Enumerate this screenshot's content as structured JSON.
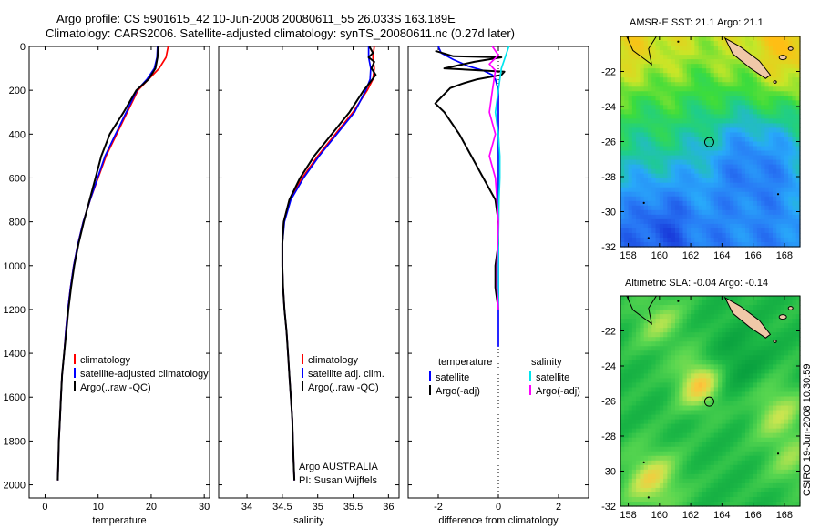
{
  "header": {
    "line1": "Argo profile: CS 5901615_42 10-Jun-2008 20080611_55 26.033S 163.189E",
    "line2": "Climatology: CARS2006. Satellite-adjusted climatology: synTS_20080611.nc (0.27d later)"
  },
  "side_stamp": "CSIRO 19-Jun-2008 10:30:59",
  "colors": {
    "red": "#ff0000",
    "blue": "#0000ff",
    "black": "#000000",
    "cyan": "#00e5ee",
    "magenta": "#ff00ff",
    "sand": "#f0c8a8"
  },
  "chart_data": [
    {
      "type": "line",
      "xlabel": "temperature",
      "xlim": [
        -3,
        31
      ],
      "xticks": [
        0,
        10,
        20,
        30
      ],
      "ylim": [
        2060,
        0
      ],
      "yticks": [
        0,
        200,
        400,
        600,
        800,
        1000,
        1200,
        1400,
        1600,
        1800,
        2000
      ],
      "legend": {
        "entries": [
          "climatology",
          "satellite-adjusted climatology",
          "Argo(..raw -QC)"
        ],
        "colors": [
          "red",
          "blue",
          "black"
        ]
      },
      "series": [
        {
          "name": "climatology",
          "color": "red",
          "points": [
            [
              23.2,
              0
            ],
            [
              22.8,
              50
            ],
            [
              21.5,
              100
            ],
            [
              19.5,
              150
            ],
            [
              17.5,
              200
            ],
            [
              15.5,
              300
            ],
            [
              13.5,
              400
            ],
            [
              11.5,
              500
            ],
            [
              10,
              600
            ],
            [
              8.5,
              700
            ],
            [
              7.2,
              800
            ],
            [
              6.2,
              900
            ],
            [
              5.4,
              1000
            ],
            [
              4.8,
              1100
            ],
            [
              4.3,
              1200
            ],
            [
              3.9,
              1300
            ],
            [
              3.6,
              1400
            ],
            [
              3.2,
              1500
            ],
            [
              3,
              1600
            ],
            [
              2.8,
              1700
            ],
            [
              2.6,
              1800
            ],
            [
              2.5,
              1900
            ],
            [
              2.4,
              1980
            ]
          ]
        },
        {
          "name": "satellite-adjusted climatology",
          "color": "blue",
          "points": [
            [
              21.2,
              0
            ],
            [
              21.1,
              50
            ],
            [
              20.6,
              100
            ],
            [
              19.2,
              150
            ],
            [
              17.3,
              200
            ],
            [
              15.3,
              300
            ],
            [
              13.3,
              400
            ],
            [
              11.3,
              500
            ],
            [
              9.9,
              600
            ],
            [
              8.5,
              700
            ],
            [
              7.2,
              800
            ],
            [
              6.2,
              900
            ],
            [
              5.4,
              1000
            ],
            [
              4.8,
              1100
            ],
            [
              4.3,
              1200
            ],
            [
              3.9,
              1300
            ],
            [
              3.6,
              1400
            ],
            [
              3.2,
              1500
            ],
            [
              3,
              1600
            ],
            [
              2.8,
              1700
            ],
            [
              2.6,
              1800
            ],
            [
              2.5,
              1900
            ],
            [
              2.4,
              1980
            ]
          ]
        },
        {
          "name": "Argo(..raw -QC)",
          "color": "black",
          "points": [
            [
              21.3,
              0
            ],
            [
              21.2,
              50
            ],
            [
              20.8,
              100
            ],
            [
              19.5,
              150
            ],
            [
              17.2,
              200
            ],
            [
              14.8,
              300
            ],
            [
              12.2,
              400
            ],
            [
              10.6,
              500
            ],
            [
              9.5,
              600
            ],
            [
              8.4,
              700
            ],
            [
              7.3,
              800
            ],
            [
              6.3,
              900
            ],
            [
              5.5,
              1000
            ],
            [
              4.9,
              1100
            ],
            [
              4.4,
              1200
            ],
            [
              4,
              1300
            ],
            [
              3.6,
              1400
            ],
            [
              3.2,
              1500
            ],
            [
              3,
              1600
            ],
            [
              2.8,
              1700
            ],
            [
              2.6,
              1800
            ],
            [
              2.5,
              1900
            ],
            [
              2.4,
              1980
            ]
          ]
        }
      ]
    },
    {
      "type": "line",
      "xlabel": "salinity",
      "xlim": [
        33.6,
        36.15
      ],
      "xticks": [
        34,
        34.5,
        35,
        35.5,
        36
      ],
      "ylim": [
        2060,
        0
      ],
      "legend": {
        "entries": [
          "climatology",
          "satellite adj. clim.",
          "Argo(..raw -QC)"
        ],
        "colors": [
          "red",
          "blue",
          "black"
        ]
      },
      "annotation": [
        "Argo AUSTRALIA",
        "PI: Susan Wijffels"
      ],
      "series": [
        {
          "name": "climatology",
          "color": "red",
          "points": [
            [
              35.8,
              0
            ],
            [
              35.78,
              50
            ],
            [
              35.8,
              100
            ],
            [
              35.78,
              150
            ],
            [
              35.7,
              200
            ],
            [
              35.5,
              300
            ],
            [
              35.25,
              400
            ],
            [
              35,
              500
            ],
            [
              34.78,
              600
            ],
            [
              34.6,
              700
            ],
            [
              34.52,
              800
            ],
            [
              34.5,
              900
            ],
            [
              34.5,
              1000
            ],
            [
              34.51,
              1100
            ],
            [
              34.53,
              1200
            ],
            [
              34.56,
              1300
            ],
            [
              34.58,
              1400
            ],
            [
              34.6,
              1500
            ],
            [
              34.62,
              1600
            ],
            [
              34.64,
              1700
            ],
            [
              34.65,
              1800
            ],
            [
              34.66,
              1900
            ],
            [
              34.67,
              1980
            ]
          ]
        },
        {
          "name": "satellite adj. clim.",
          "color": "blue",
          "points": [
            [
              35.72,
              0
            ],
            [
              35.72,
              50
            ],
            [
              35.75,
              100
            ],
            [
              35.74,
              150
            ],
            [
              35.68,
              200
            ],
            [
              35.52,
              300
            ],
            [
              35.27,
              400
            ],
            [
              35.02,
              500
            ],
            [
              34.8,
              600
            ],
            [
              34.62,
              700
            ],
            [
              34.53,
              800
            ],
            [
              34.5,
              900
            ],
            [
              34.5,
              1000
            ],
            [
              34.51,
              1100
            ],
            [
              34.53,
              1200
            ],
            [
              34.56,
              1300
            ],
            [
              34.58,
              1400
            ],
            [
              34.6,
              1500
            ],
            [
              34.62,
              1600
            ],
            [
              34.64,
              1700
            ],
            [
              34.65,
              1800
            ],
            [
              34.66,
              1900
            ],
            [
              34.67,
              1980
            ]
          ]
        },
        {
          "name": "Argo(..raw -QC)",
          "color": "black",
          "points": [
            [
              35.73,
              0
            ],
            [
              35.78,
              30
            ],
            [
              35.72,
              50
            ],
            [
              35.8,
              70
            ],
            [
              35.76,
              100
            ],
            [
              35.82,
              130
            ],
            [
              35.75,
              160
            ],
            [
              35.65,
              200
            ],
            [
              35.45,
              300
            ],
            [
              35.2,
              400
            ],
            [
              34.95,
              500
            ],
            [
              34.75,
              600
            ],
            [
              34.6,
              700
            ],
            [
              34.52,
              800
            ],
            [
              34.5,
              900
            ],
            [
              34.5,
              1000
            ],
            [
              34.51,
              1100
            ],
            [
              34.53,
              1200
            ],
            [
              34.56,
              1300
            ],
            [
              34.58,
              1400
            ],
            [
              34.6,
              1500
            ],
            [
              34.62,
              1600
            ],
            [
              34.64,
              1700
            ],
            [
              34.65,
              1800
            ],
            [
              34.66,
              1900
            ],
            [
              34.67,
              1980
            ]
          ]
        }
      ]
    },
    {
      "type": "line",
      "xlabel": "difference from climatology",
      "xlim": [
        -3,
        3
      ],
      "xticks": [
        -2,
        0,
        2
      ],
      "ylim": [
        2060,
        0
      ],
      "zero_line": "dotted",
      "legend": {
        "groups": [
          {
            "title": "temperature",
            "entries": [
              "satellite",
              "Argo(-adj)"
            ],
            "colors": [
              "blue",
              "black"
            ]
          },
          {
            "title": "salinity",
            "entries": [
              "satellite",
              "Argo(-adj)"
            ],
            "colors": [
              "cyan",
              "magenta"
            ]
          }
        ]
      },
      "series": [
        {
          "name": "satellite",
          "group": "temperature",
          "color": "blue",
          "points": [
            [
              -2,
              0
            ],
            [
              -1.9,
              30
            ],
            [
              -1.5,
              60
            ],
            [
              -1,
              90
            ],
            [
              -0.5,
              110
            ],
            [
              -0.2,
              130
            ],
            [
              -0.1,
              150
            ],
            [
              0,
              200
            ],
            [
              0,
              400
            ],
            [
              0,
              800
            ],
            [
              0,
              1200
            ],
            [
              0,
              1370
            ]
          ]
        },
        {
          "name": "Argo(-adj)",
          "group": "temperature",
          "color": "black",
          "points": [
            [
              -2.1,
              20
            ],
            [
              -1.5,
              45
            ],
            [
              0.1,
              50
            ],
            [
              -0.8,
              70
            ],
            [
              -1.8,
              100
            ],
            [
              -0.5,
              110
            ],
            [
              0.2,
              115
            ],
            [
              0.1,
              130
            ],
            [
              -0.7,
              150
            ],
            [
              -1.2,
              170
            ],
            [
              -1.6,
              190
            ],
            [
              -2.1,
              260
            ],
            [
              -1.8,
              300
            ],
            [
              -1.3,
              400
            ],
            [
              -0.9,
              500
            ],
            [
              -0.5,
              600
            ],
            [
              -0.1,
              700
            ],
            [
              0,
              800
            ],
            [
              0,
              900
            ],
            [
              -0.1,
              1000
            ],
            [
              -0.1,
              1100
            ],
            [
              0,
              1200
            ]
          ]
        },
        {
          "name": "satellite",
          "group": "salinity",
          "color": "cyan",
          "points": [
            [
              0.35,
              0
            ],
            [
              0.2,
              60
            ],
            [
              0.1,
              100
            ],
            [
              0.05,
              150
            ],
            [
              0,
              200
            ],
            [
              -0.1,
              300
            ],
            [
              0,
              400
            ],
            [
              0.05,
              500
            ],
            [
              0.05,
              600
            ],
            [
              0.02,
              700
            ],
            [
              0,
              900
            ],
            [
              0,
              1100
            ],
            [
              0,
              1200
            ]
          ]
        },
        {
          "name": "Argo(-adj)",
          "group": "salinity",
          "color": "magenta",
          "points": [
            [
              -0.2,
              0
            ],
            [
              0,
              40
            ],
            [
              -0.3,
              80
            ],
            [
              -0.1,
              110
            ],
            [
              -0.2,
              200
            ],
            [
              -0.3,
              300
            ],
            [
              -0.1,
              400
            ],
            [
              -0.3,
              500
            ],
            [
              -0.1,
              600
            ],
            [
              -0.05,
              700
            ],
            [
              0,
              800
            ],
            [
              -0.05,
              1000
            ],
            [
              -0.05,
              1100
            ],
            [
              0,
              1200
            ]
          ]
        }
      ]
    },
    {
      "type": "heatmap",
      "title": "AMSR-E SST: 21.1  Argo: 21.1",
      "xlim": [
        157.5,
        169
      ],
      "xticks": [
        158,
        160,
        162,
        164,
        166,
        168
      ],
      "ylim": [
        -32,
        -20
      ],
      "yticks": [
        -22,
        -24,
        -26,
        -28,
        -30,
        -32
      ],
      "marker": {
        "lon": 163.189,
        "lat": -26.033
      },
      "pattern": "sst"
    },
    {
      "type": "heatmap",
      "title": "Altimetric SLA: -0.04  Argo: -0.14",
      "xlim": [
        157.5,
        169
      ],
      "xticks": [
        158,
        160,
        162,
        164,
        166,
        168
      ],
      "ylim": [
        -32,
        -20
      ],
      "yticks": [
        -22,
        -24,
        -26,
        -28,
        -30,
        -32
      ],
      "marker": {
        "lon": 163.189,
        "lat": -26.033
      },
      "pattern": "sla"
    }
  ]
}
